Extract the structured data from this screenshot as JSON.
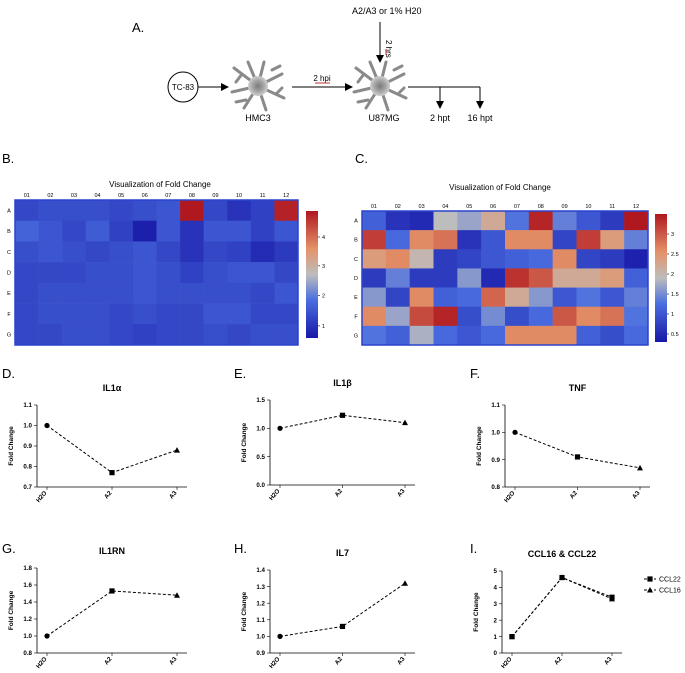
{
  "panel_labels": {
    "a": "A.",
    "b": "B.",
    "c": "C.",
    "d": "D.",
    "e": "E.",
    "f": "F.",
    "g": "G.",
    "h": "H.",
    "i": "I."
  },
  "schematic": {
    "start_label": "TC-83",
    "cell1_label": "HMC3",
    "cell2_label": "U87MG",
    "arrow1_label": "2 hpi",
    "treatment_label": "A2/A3 or 1% H20",
    "treatment_time": "2 hrs",
    "end1_label": "2 hpt",
    "end2_label": "16 hpt"
  },
  "colors": {
    "heat_low": "#1818a8",
    "heat_mid": "#bdbdbd",
    "heat_high": "#b01820",
    "line": "#000000"
  },
  "chart_data": [
    {
      "type": "heatmap",
      "id": "B",
      "title": "Visualization of Fold Change",
      "columns": [
        "01",
        "02",
        "03",
        "04",
        "05",
        "06",
        "07",
        "08",
        "09",
        "10",
        "11",
        "12"
      ],
      "rows": [
        "A",
        "B",
        "C",
        "D",
        "E",
        "F",
        "G"
      ],
      "scale": {
        "min": 0.6,
        "mid": 2.7,
        "max": 4.9,
        "ticks": [
          "1",
          "2",
          "3",
          "4"
        ],
        "tick_values": [
          1,
          2,
          3,
          4
        ]
      },
      "values": [
        [
          1.3,
          1.4,
          1.4,
          1.4,
          1.3,
          1.4,
          1.5,
          4.9,
          1.3,
          1.0,
          1.2,
          4.8
        ],
        [
          1.7,
          1.5,
          1.3,
          1.6,
          1.2,
          0.7,
          1.5,
          1.0,
          1.5,
          1.5,
          1.2,
          1.5
        ],
        [
          1.4,
          1.5,
          1.4,
          1.3,
          1.4,
          1.5,
          1.3,
          1.0,
          1.3,
          1.2,
          0.9,
          1.1
        ],
        [
          1.3,
          1.3,
          1.3,
          1.4,
          1.4,
          1.5,
          1.4,
          1.2,
          1.4,
          1.5,
          1.5,
          1.3
        ],
        [
          1.3,
          1.4,
          1.4,
          1.4,
          1.4,
          1.5,
          1.4,
          1.4,
          1.4,
          1.4,
          1.3,
          1.5
        ],
        [
          1.3,
          1.4,
          1.4,
          1.4,
          1.3,
          1.4,
          1.3,
          1.3,
          1.5,
          1.5,
          1.3,
          1.3
        ],
        [
          1.3,
          1.3,
          1.4,
          1.4,
          1.3,
          1.2,
          1.3,
          1.3,
          1.4,
          1.3,
          1.4,
          1.4
        ]
      ]
    },
    {
      "type": "heatmap",
      "id": "C",
      "title": "Visualization of Fold Change",
      "columns": [
        "01",
        "02",
        "03",
        "04",
        "05",
        "06",
        "07",
        "08",
        "09",
        "10",
        "11",
        "12"
      ],
      "rows": [
        "A",
        "B",
        "C",
        "D",
        "E",
        "F",
        "G"
      ],
      "scale": {
        "min": 0.3,
        "mid": 1.9,
        "max": 3.5,
        "ticks": [
          "0.5",
          "1",
          "1.5",
          "2",
          "2.5",
          "3"
        ],
        "tick_values": [
          0.5,
          1,
          1.5,
          2,
          2.5,
          3
        ]
      },
      "values": [
        [
          1.1,
          0.6,
          0.5,
          1.9,
          1.7,
          2.2,
          1.3,
          3.4,
          1.4,
          1.0,
          0.7,
          3.5
        ],
        [
          3.2,
          1.2,
          2.6,
          2.8,
          0.6,
          1.0,
          2.6,
          2.6,
          0.8,
          3.2,
          2.4,
          1.4
        ],
        [
          2.4,
          2.6,
          2.0,
          0.7,
          0.8,
          1.0,
          1.1,
          1.2,
          2.6,
          0.8,
          0.7,
          0.4
        ],
        [
          0.7,
          1.4,
          0.7,
          0.7,
          1.6,
          0.5,
          3.3,
          3.0,
          2.2,
          2.2,
          2.4,
          1.1
        ],
        [
          1.6,
          0.8,
          2.6,
          1.1,
          1.2,
          2.9,
          2.2,
          1.6,
          1.0,
          1.3,
          1.0,
          1.4
        ],
        [
          2.6,
          1.7,
          3.1,
          3.4,
          0.9,
          1.5,
          0.9,
          1.2,
          3.0,
          2.6,
          2.8,
          1.3
        ],
        [
          1.3,
          1.1,
          1.8,
          1.2,
          1.0,
          1.2,
          2.6,
          2.6,
          2.6,
          1.1,
          0.9,
          1.2
        ]
      ]
    },
    {
      "type": "line",
      "id": "D",
      "title": "IL1α",
      "categories": [
        "H2O",
        "A2",
        "A3"
      ],
      "series": [
        {
          "name": "IL1α",
          "marker": "circle-square-triangle",
          "values": [
            1.0,
            0.77,
            0.88
          ]
        }
      ],
      "ylabel": "Fold Change",
      "ylim": [
        0.7,
        1.1
      ],
      "yticks": [
        0.7,
        0.8,
        0.9,
        1.0,
        1.1
      ],
      "ytick_labels": [
        "0.7",
        "0.8",
        "0.9",
        "1.0",
        "1.1"
      ]
    },
    {
      "type": "line",
      "id": "E",
      "title": "IL1β",
      "categories": [
        "H2O",
        "A2",
        "A3"
      ],
      "series": [
        {
          "name": "IL1β",
          "marker": "circle-square-triangle",
          "values": [
            1.0,
            1.23,
            1.1
          ]
        }
      ],
      "ylabel": "Fold Change",
      "ylim": [
        0.0,
        1.5
      ],
      "yticks": [
        0.0,
        0.5,
        1.0,
        1.5
      ],
      "ytick_labels": [
        "0.0",
        "0.5",
        "1.0",
        "1.5"
      ]
    },
    {
      "type": "line",
      "id": "F",
      "title": "TNF",
      "categories": [
        "H2O",
        "A2",
        "A3"
      ],
      "series": [
        {
          "name": "TNF",
          "marker": "circle-square-triangle",
          "values": [
            1.0,
            0.91,
            0.87
          ]
        }
      ],
      "ylabel": "Fold Change",
      "ylim": [
        0.8,
        1.1
      ],
      "yticks": [
        0.8,
        0.9,
        1.0,
        1.1
      ],
      "ytick_labels": [
        "0.8",
        "0.9",
        "1.0",
        "1.1"
      ]
    },
    {
      "type": "line",
      "id": "G",
      "title": "IL1RN",
      "categories": [
        "H2O",
        "A2",
        "A3"
      ],
      "series": [
        {
          "name": "IL1RN",
          "marker": "circle-square-triangle",
          "values": [
            1.0,
            1.53,
            1.48
          ]
        }
      ],
      "ylabel": "Fold Change",
      "ylim": [
        0.8,
        1.8
      ],
      "yticks": [
        0.8,
        1.0,
        1.2,
        1.4,
        1.6,
        1.8
      ],
      "ytick_labels": [
        "0.8",
        "1.0",
        "1.2",
        "1.4",
        "1.6",
        "1.8"
      ]
    },
    {
      "type": "line",
      "id": "H",
      "title": "IL7",
      "categories": [
        "H2O",
        "A2",
        "A3"
      ],
      "series": [
        {
          "name": "IL7",
          "marker": "circle-square-triangle",
          "values": [
            1.0,
            1.06,
            1.32
          ]
        }
      ],
      "ylabel": "Fold Change",
      "ylim": [
        0.9,
        1.4
      ],
      "yticks": [
        0.9,
        1.0,
        1.1,
        1.2,
        1.3,
        1.4
      ],
      "ytick_labels": [
        "0.9",
        "1.0",
        "1.1",
        "1.2",
        "1.3",
        "1.4"
      ]
    },
    {
      "type": "line",
      "id": "I",
      "title": "CCL16 & CCL22",
      "categories": [
        "H2O",
        "A2",
        "A3"
      ],
      "series": [
        {
          "name": "CCL22",
          "marker": "square",
          "values": [
            1.0,
            4.6,
            3.4
          ]
        },
        {
          "name": "CCL16",
          "marker": "triangle",
          "values": [
            1.0,
            4.6,
            3.3
          ]
        }
      ],
      "legend": {
        "position": "right",
        "entries": [
          "CCL22",
          "CCL16"
        ]
      },
      "ylabel": "Fold Change",
      "ylim": [
        0,
        5
      ],
      "yticks": [
        0,
        1,
        2,
        3,
        4,
        5
      ],
      "ytick_labels": [
        "0",
        "1",
        "2",
        "3",
        "4",
        "5"
      ]
    }
  ]
}
